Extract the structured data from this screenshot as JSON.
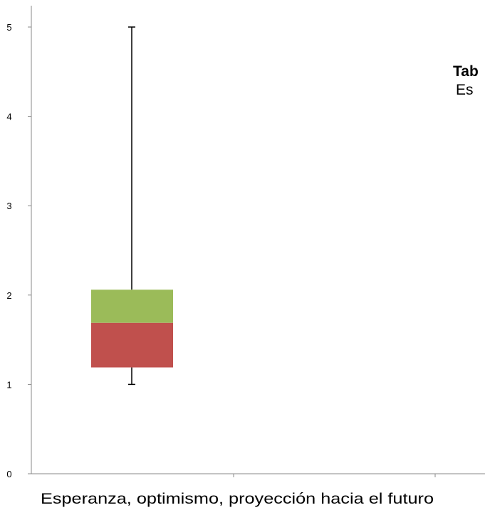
{
  "chart_data": {
    "type": "boxplot",
    "categories": [
      "Esperanza, optimismo, proyección hacia el futuro"
    ],
    "yticks": [
      "0",
      "1",
      "2",
      "3",
      "4",
      "5"
    ],
    "ylim": [
      0,
      5
    ],
    "grid": false,
    "series": [
      {
        "min": 1,
        "q1": 1.19,
        "median": 1.69,
        "q3": 2.06,
        "max": 5
      }
    ],
    "colors": {
      "lower_box": "#c0504d",
      "upper_box": "#9bbb59",
      "axis": "#888888",
      "whisker": "#000000"
    }
  },
  "side_note": {
    "line1": "Tab",
    "line2": "Es"
  }
}
